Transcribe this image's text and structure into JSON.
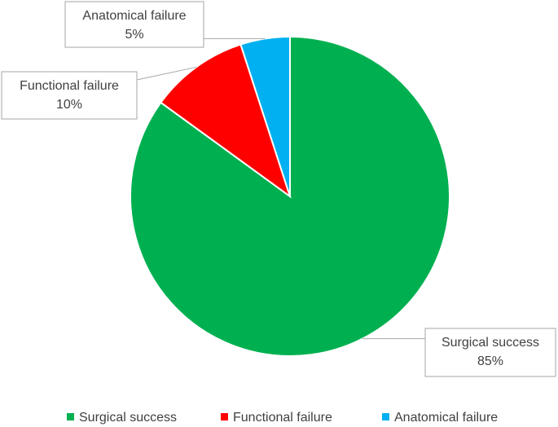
{
  "chart_data": {
    "type": "pie",
    "categories": [
      "Surgical success",
      "Functional failure",
      "Anatomical failure"
    ],
    "values": [
      85,
      10,
      5
    ],
    "value_labels": [
      "85%",
      "10%",
      "5%"
    ],
    "colors": [
      "#00b050",
      "#ff0000",
      "#00b0f0"
    ],
    "legend": "bottom"
  }
}
